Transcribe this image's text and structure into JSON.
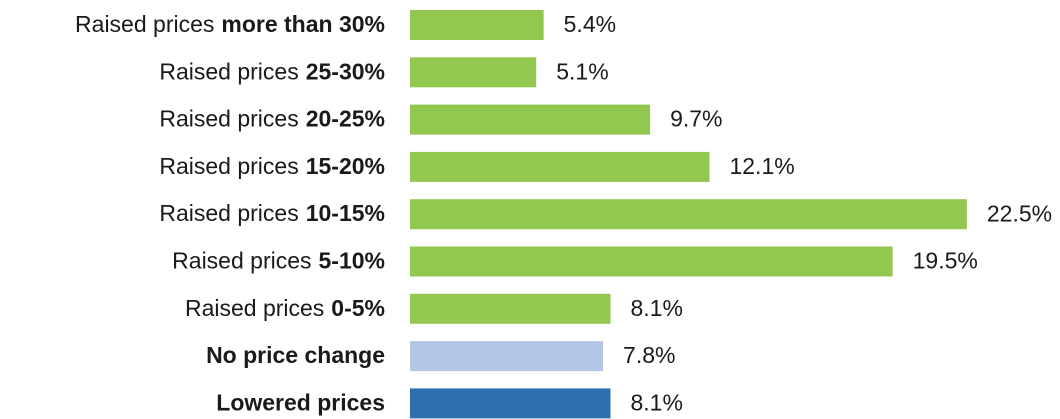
{
  "chart_data": {
    "type": "bar",
    "orientation": "horizontal",
    "categories": [
      {
        "plain": "Raised prices",
        "bold": "more than 30%"
      },
      {
        "plain": "Raised prices",
        "bold": "25-30%"
      },
      {
        "plain": "Raised prices",
        "bold": "20-25%"
      },
      {
        "plain": "Raised prices",
        "bold": "15-20%"
      },
      {
        "plain": "Raised prices",
        "bold": "10-15%"
      },
      {
        "plain": "Raised prices",
        "bold": "5-10%"
      },
      {
        "plain": "Raised prices",
        "bold": "0-5%"
      },
      {
        "bold": "No price change"
      },
      {
        "bold": "Lowered prices"
      }
    ],
    "values": [
      5.4,
      5.1,
      9.7,
      12.1,
      22.5,
      19.5,
      8.1,
      7.8,
      8.1
    ],
    "value_labels": [
      "5.4%",
      "5.1%",
      "9.7%",
      "12.1%",
      "22.5%",
      "19.5%",
      "8.1%",
      "7.8%",
      "8.1%"
    ],
    "colors": [
      "#92c84f",
      "#92c84f",
      "#92c84f",
      "#92c84f",
      "#92c84f",
      "#92c84f",
      "#92c84f",
      "#b4c6e7",
      "#2e6fb0"
    ]
  }
}
